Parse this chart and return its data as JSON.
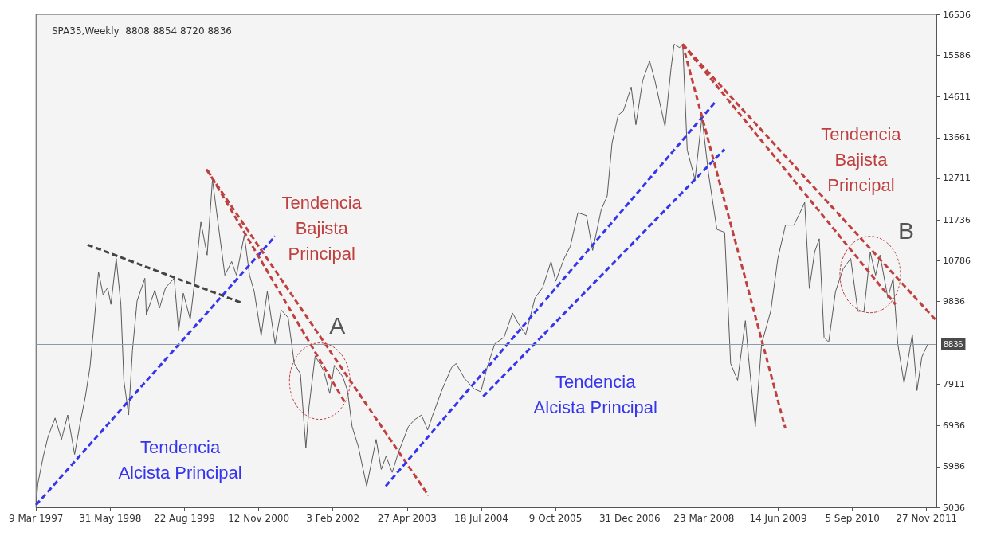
{
  "chart_data": {
    "type": "line",
    "title": "SPA35,Weekly  8808 8854 8720 8836",
    "xlim": [
      "1997-03-09",
      "2012-01-25"
    ],
    "ylim": [
      5036,
      16536
    ],
    "xticks": [
      {
        "value": "1997-03-09",
        "label": "9 Mar 1997"
      },
      {
        "value": "1998-05-31",
        "label": "31 May 1998"
      },
      {
        "value": "1999-08-22",
        "label": "22 Aug 1999"
      },
      {
        "value": "2000-11-12",
        "label": "12 Nov 2000"
      },
      {
        "value": "2002-02-03",
        "label": "3 Feb 2002"
      },
      {
        "value": "2003-04-27",
        "label": "27 Apr 2003"
      },
      {
        "value": "2004-07-18",
        "label": "18 Jul 2004"
      },
      {
        "value": "2005-10-09",
        "label": "9 Oct 2005"
      },
      {
        "value": "2006-12-31",
        "label": "31 Dec 2006"
      },
      {
        "value": "2008-03-23",
        "label": "23 Mar 2008"
      },
      {
        "value": "2009-06-14",
        "label": "14 Jun 2009"
      },
      {
        "value": "2010-09-05",
        "label": "5 Sep 2010"
      },
      {
        "value": "2011-11-27",
        "label": "27 Nov 2011"
      }
    ],
    "yticks": [
      5036,
      5986,
      6936,
      7911,
      9836,
      10786,
      11736,
      12711,
      13661,
      14611,
      15586,
      16536
    ],
    "grid": false,
    "marker": "none",
    "ref_lines": [
      {
        "axis": "y",
        "value": 8836,
        "label": "8836",
        "color": "#8a9aa8"
      }
    ],
    "series": [
      {
        "color": "#5a5a5a",
        "line_style": "solid",
        "x": [
          "1997-03-09",
          "1997-03-20",
          "1997-04-22",
          "1997-05-21",
          "1997-07-02",
          "1997-08-10",
          "1997-09-16",
          "1997-10-28",
          "1997-12-04",
          "1998-01-01",
          "1998-01-29",
          "1998-02-22",
          "1998-03-21",
          "1998-04-18",
          "1998-05-15",
          "1998-06-04",
          "1998-07-06",
          "1998-08-03",
          "1998-08-21",
          "1998-09-19",
          "1998-10-12",
          "1998-11-09",
          "1998-12-26",
          "1999-01-04",
          "1999-02-24",
          "1999-03-24",
          "1999-04-30",
          "1999-06-21",
          "1999-07-18",
          "1999-08-15",
          "1999-09-26",
          "1999-10-23",
          "1999-11-29",
          "2000-01-06",
          "2000-02-07",
          "2000-03-16",
          "2000-04-22",
          "2000-06-02",
          "2000-07-01",
          "2000-08-17",
          "2000-09-18",
          "2000-10-16",
          "2000-11-27",
          "2001-01-03",
          "2001-02-19",
          "2001-03-28",
          "2001-05-09",
          "2001-06-15",
          "2001-07-22",
          "2001-08-24",
          "2001-09-12",
          "2001-10-19",
          "2001-12-10",
          "2002-01-15",
          "2002-02-12",
          "2002-04-04",
          "2002-05-02",
          "2002-05-30",
          "2002-07-06",
          "2002-08-26",
          "2002-10-22",
          "2002-11-22",
          "2002-12-21",
          "2003-01-27",
          "2003-03-05",
          "2003-05-05",
          "2003-06-11",
          "2003-07-23",
          "2003-08-29",
          "2003-09-26",
          "2003-11-26",
          "2004-01-21",
          "2004-02-17",
          "2004-04-08",
          "2004-06-04",
          "2004-07-15",
          "2004-08-22",
          "2004-10-07",
          "2004-12-02",
          "2005-01-22",
          "2005-03-01",
          "2005-04-12",
          "2005-06-07",
          "2005-07-23",
          "2005-09-12",
          "2005-10-10",
          "2005-11-30",
          "2006-01-06",
          "2006-02-21",
          "2006-04-14",
          "2006-05-21",
          "2006-07-12",
          "2006-08-17",
          "2006-09-15",
          "2006-10-22",
          "2006-11-23",
          "2007-01-09",
          "2007-02-06",
          "2007-03-19",
          "2007-04-30",
          "2007-06-01",
          "2007-08-01",
          "2007-09-07",
          "2007-09-25",
          "2007-10-28",
          "2007-11-16",
          "2007-12-13",
          "2008-01-29",
          "2008-03-11",
          "2008-04-19",
          "2008-06-09",
          "2008-07-26",
          "2008-08-31",
          "2008-10-12",
          "2008-11-28",
          "2008-12-17",
          "2009-01-27",
          "2009-03-06",
          "2009-04-30",
          "2009-06-12",
          "2009-07-28",
          "2009-09-17",
          "2009-10-24",
          "2009-11-21",
          "2009-12-19",
          "2010-01-20",
          "2010-02-17",
          "2010-03-18",
          "2010-04-15",
          "2010-05-26",
          "2010-07-11",
          "2010-08-26",
          "2010-10-08",
          "2010-11-14",
          "2010-12-22",
          "2011-01-23",
          "2011-02-19",
          "2011-04-07",
          "2011-05-09",
          "2011-06-06",
          "2011-07-14",
          "2011-09-02",
          "2011-09-30",
          "2011-10-29",
          "2011-12-05"
        ],
        "values": [
          5090,
          5590,
          6230,
          6690,
          7120,
          6620,
          7190,
          6270,
          7080,
          7620,
          8320,
          9310,
          10530,
          9990,
          10160,
          9770,
          10840,
          9770,
          8000,
          7190,
          8690,
          9850,
          10380,
          9530,
          10100,
          9680,
          10160,
          10380,
          9150,
          10030,
          9420,
          10310,
          11690,
          10920,
          12680,
          11540,
          10450,
          10770,
          10450,
          11380,
          10450,
          10070,
          9040,
          10070,
          8850,
          9640,
          9460,
          8390,
          8150,
          6420,
          7380,
          8570,
          8220,
          7690,
          8350,
          8080,
          7760,
          6920,
          6460,
          5530,
          6620,
          5920,
          6230,
          5850,
          6310,
          6920,
          7080,
          7190,
          6840,
          7160,
          7800,
          8300,
          8390,
          8040,
          7800,
          7730,
          8300,
          8850,
          9000,
          9570,
          9310,
          9070,
          9920,
          10160,
          10770,
          10310,
          10840,
          11120,
          11910,
          11840,
          11030,
          11980,
          12300,
          13530,
          14180,
          14290,
          14840,
          13960,
          14990,
          15450,
          14990,
          13920,
          15300,
          15840,
          15760,
          15840,
          13370,
          12680,
          14140,
          12830,
          11520,
          11450,
          8390,
          8000,
          9390,
          8540,
          6920,
          8850,
          9610,
          10840,
          11620,
          11620,
          11910,
          12150,
          10140,
          10990,
          11300,
          9000,
          8890,
          10070,
          10600,
          10840,
          9610,
          9610,
          10990,
          10450,
          10920,
          9920,
          10380,
          8850,
          7930,
          9070,
          7760,
          8540,
          8850
        ]
      },
      {
        "color": "#3535ee",
        "line_style": "dashed",
        "x": [
          "1997-03-09",
          "2001-02-19"
        ],
        "values": [
          5090,
          11360
        ]
      },
      {
        "color": "#444444",
        "line_style": "dashed",
        "x": [
          "1998-01-14",
          "2000-07-29"
        ],
        "values": [
          11160,
          9810
        ]
      },
      {
        "color": "#c0403f",
        "line_style": "dashed",
        "x": [
          "2000-01-10",
          "2002-04-14"
        ],
        "values": [
          12890,
          7500
        ]
      },
      {
        "color": "#c0403f",
        "line_style": "dashed",
        "x": [
          "2000-01-01",
          "2003-09-03"
        ],
        "values": [
          12920,
          5310
        ]
      },
      {
        "color": "#3535ee",
        "line_style": "dashed",
        "x": [
          "2002-12-19",
          "2008-06-08"
        ],
        "values": [
          5530,
          14530
        ]
      },
      {
        "color": "#3535ee",
        "line_style": "dashed",
        "x": [
          "2004-07-29",
          "2008-07-25"
        ],
        "values": [
          7620,
          13390
        ]
      },
      {
        "color": "#c0403f",
        "line_style": "dashed",
        "x": [
          "2007-11-15",
          "2009-07-27"
        ],
        "values": [
          15840,
          6880
        ]
      },
      {
        "color": "#c0403f",
        "line_style": "dashed",
        "x": [
          "2007-11-15",
          "2011-05-23"
        ],
        "values": [
          15840,
          9770
        ]
      },
      {
        "color": "#c0403f",
        "line_style": "dashed",
        "x": [
          "2007-11-15",
          "2012-01-25"
        ],
        "values": [
          15840,
          9390
        ]
      }
    ],
    "annotations": [
      "Tendencia\nBajista\nPrincipal",
      "Tendencia\nAlcista Principal",
      "A",
      "Tendencia\nAlcista Principal",
      "Tendencia\nBajista\nPrincipal",
      "B"
    ]
  }
}
